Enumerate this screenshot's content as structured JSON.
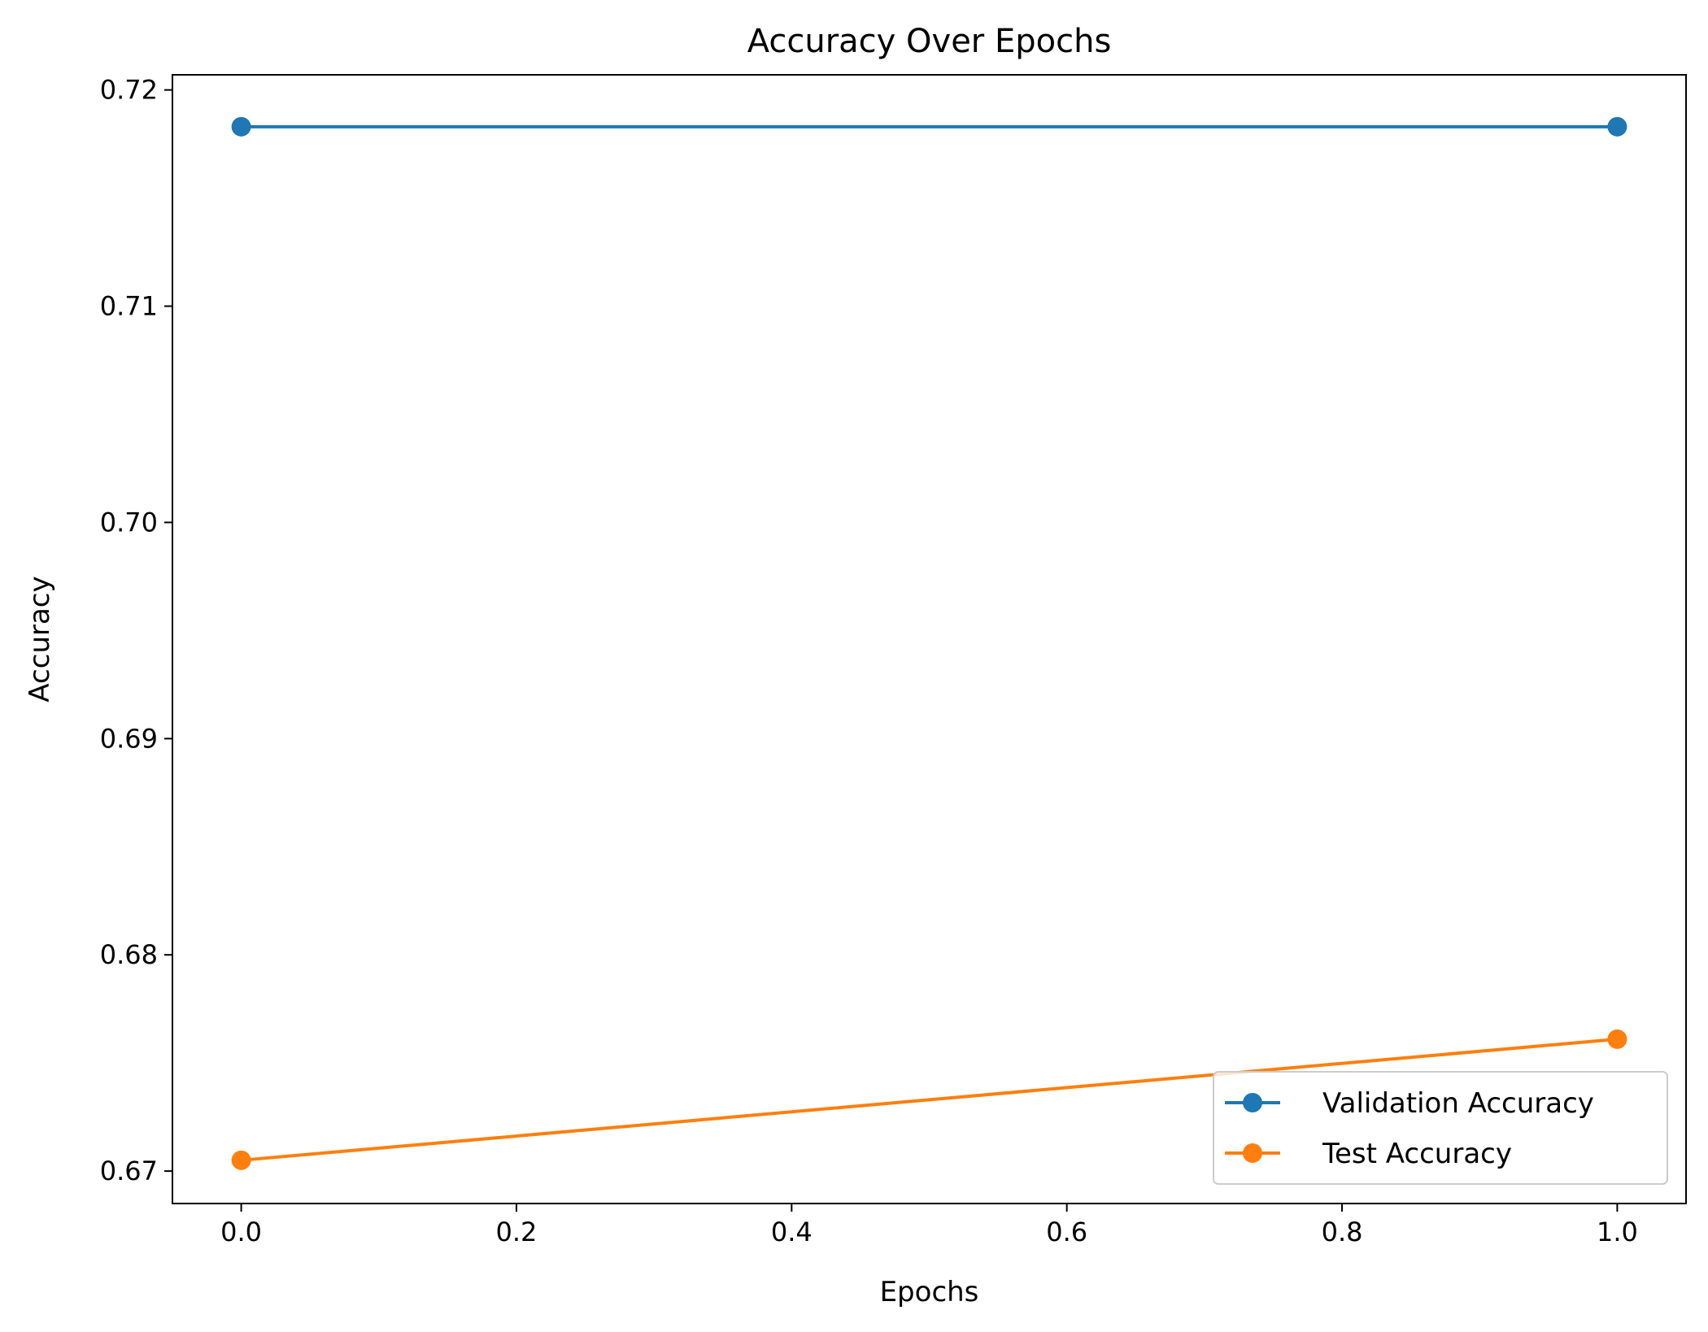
{
  "chart_data": {
    "type": "line",
    "title": "Accuracy Over Epochs",
    "xlabel": "Epochs",
    "ylabel": "Accuracy",
    "xlim": [
      -0.05,
      1.05
    ],
    "ylim": [
      0.6685,
      0.7207
    ],
    "xticks": [
      0.0,
      0.2,
      0.4,
      0.6,
      0.8,
      1.0
    ],
    "xtick_labels": [
      "0.0",
      "0.2",
      "0.4",
      "0.6",
      "0.8",
      "1.0"
    ],
    "yticks": [
      0.67,
      0.68,
      0.69,
      0.7,
      0.71,
      0.72
    ],
    "ytick_labels": [
      "0.67",
      "0.68",
      "0.69",
      "0.70",
      "0.71",
      "0.72"
    ],
    "grid": false,
    "legend_position": "bottom-right",
    "series": [
      {
        "name": "Validation Accuracy",
        "color": "#1f77b4",
        "x": [
          0,
          1
        ],
        "y": [
          0.7183,
          0.7183
        ]
      },
      {
        "name": "Test Accuracy",
        "color": "#ff7f0e",
        "x": [
          0,
          1
        ],
        "y": [
          0.6705,
          0.6761
        ]
      }
    ]
  }
}
